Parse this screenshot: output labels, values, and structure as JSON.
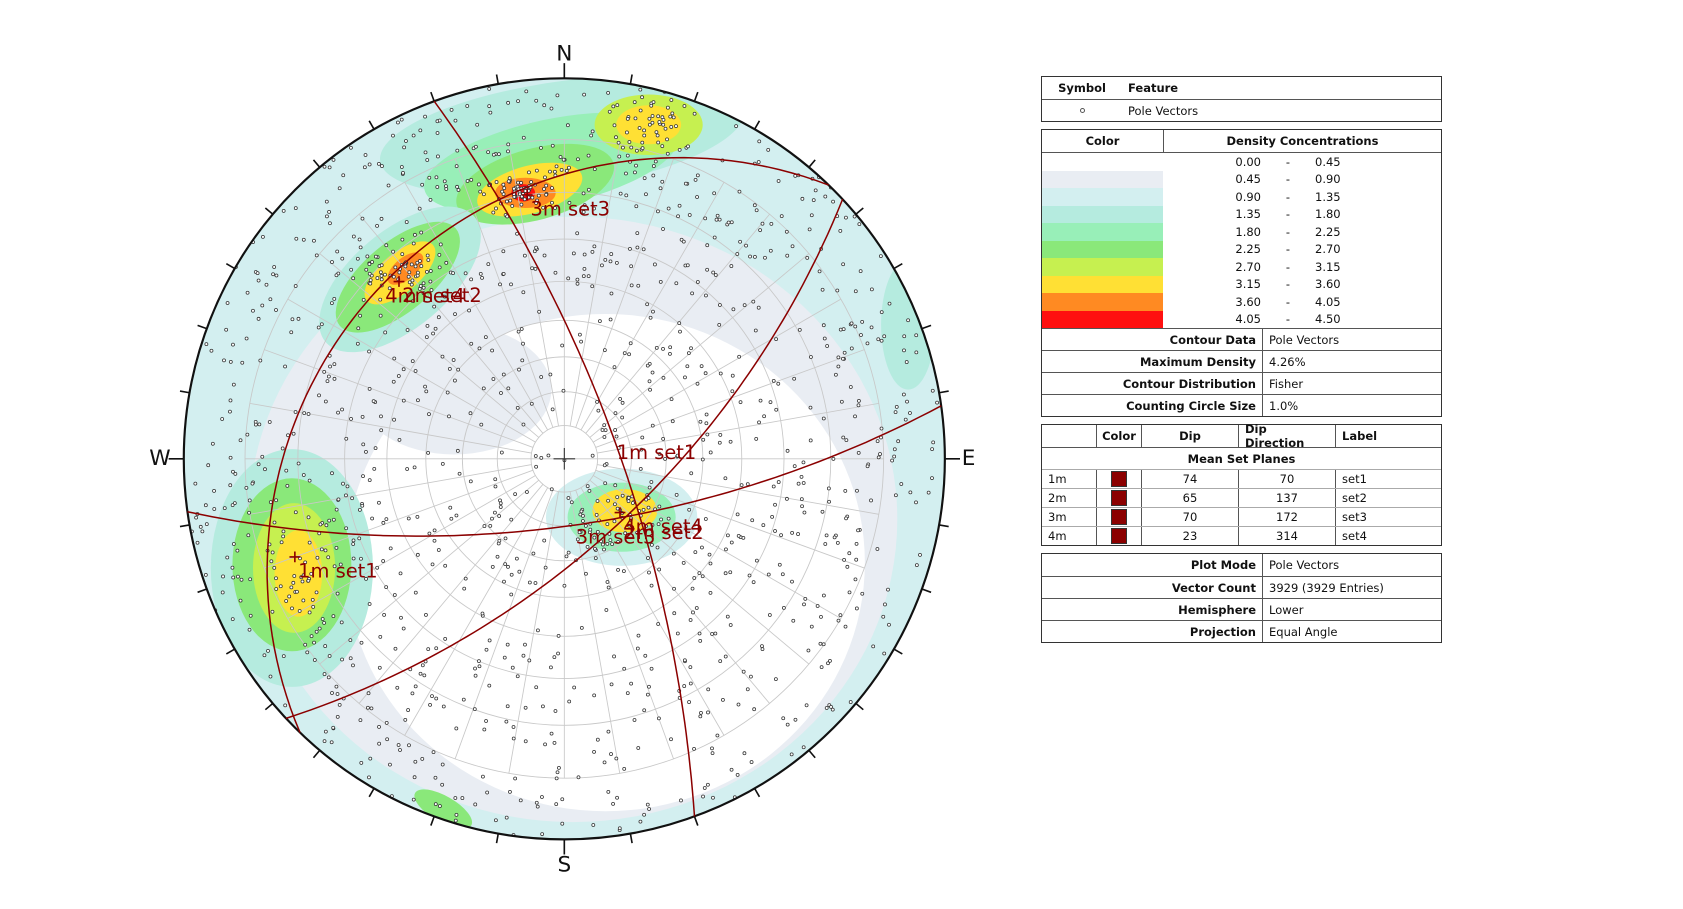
{
  "stereonet": {
    "compass": {
      "N": "N",
      "E": "E",
      "S": "S",
      "W": "W"
    },
    "pole_labels": [
      "1m set1",
      "2m set2",
      "3m set3",
      "4m set4"
    ],
    "plane_labels": [
      "1m set1",
      "2m set2",
      "3m set3",
      "4m set4"
    ]
  },
  "legend": {
    "symbols": {
      "headers": [
        "Symbol",
        "Feature"
      ],
      "rows": [
        {
          "feature": "Pole Vectors"
        }
      ]
    },
    "density": {
      "headers": [
        "Color",
        "Density Concentrations"
      ],
      "separator": "-",
      "bins": [
        {
          "from": "0.00",
          "to": "0.45",
          "color": "#ffffff"
        },
        {
          "from": "0.45",
          "to": "0.90",
          "color": "#e9edf3"
        },
        {
          "from": "0.90",
          "to": "1.35",
          "color": "#d3eff0"
        },
        {
          "from": "1.35",
          "to": "1.80",
          "color": "#b5ebdf"
        },
        {
          "from": "1.80",
          "to": "2.25",
          "color": "#98efb8"
        },
        {
          "from": "2.25",
          "to": "2.70",
          "color": "#8ae87a"
        },
        {
          "from": "2.70",
          "to": "3.15",
          "color": "#c6f050"
        },
        {
          "from": "3.15",
          "to": "3.60",
          "color": "#ffe034"
        },
        {
          "from": "3.60",
          "to": "4.05",
          "color": "#ff8a22"
        },
        {
          "from": "4.05",
          "to": "4.50",
          "color": "#ff1010"
        }
      ]
    },
    "contour": [
      {
        "label": "Contour Data",
        "value": "Pole Vectors"
      },
      {
        "label": "Maximum Density",
        "value": "4.26%"
      },
      {
        "label": "Contour Distribution",
        "value": "Fisher"
      },
      {
        "label": "Counting Circle Size",
        "value": "1.0%"
      }
    ],
    "sets": {
      "headers": [
        "Color",
        "Dip",
        "Dip Direction",
        "Label"
      ],
      "title": "Mean Set Planes",
      "rows": [
        {
          "id": "1m",
          "color": "#8b0000",
          "dip": 74,
          "dip_direction": 70,
          "label": "set1"
        },
        {
          "id": "2m",
          "color": "#8b0000",
          "dip": 65,
          "dip_direction": 137,
          "label": "set2"
        },
        {
          "id": "3m",
          "color": "#8b0000",
          "dip": 70,
          "dip_direction": 172,
          "label": "set3"
        },
        {
          "id": "4m",
          "color": "#8b0000",
          "dip": 23,
          "dip_direction": 314,
          "label": "set4"
        }
      ]
    },
    "plot": [
      {
        "label": "Plot Mode",
        "value": "Pole Vectors"
      },
      {
        "label": "Vector Count",
        "value": "3929 (3929 Entries)"
      },
      {
        "label": "Hemisphere",
        "value": "Lower"
      },
      {
        "label": "Projection",
        "value": "Equal Angle"
      }
    ]
  }
}
